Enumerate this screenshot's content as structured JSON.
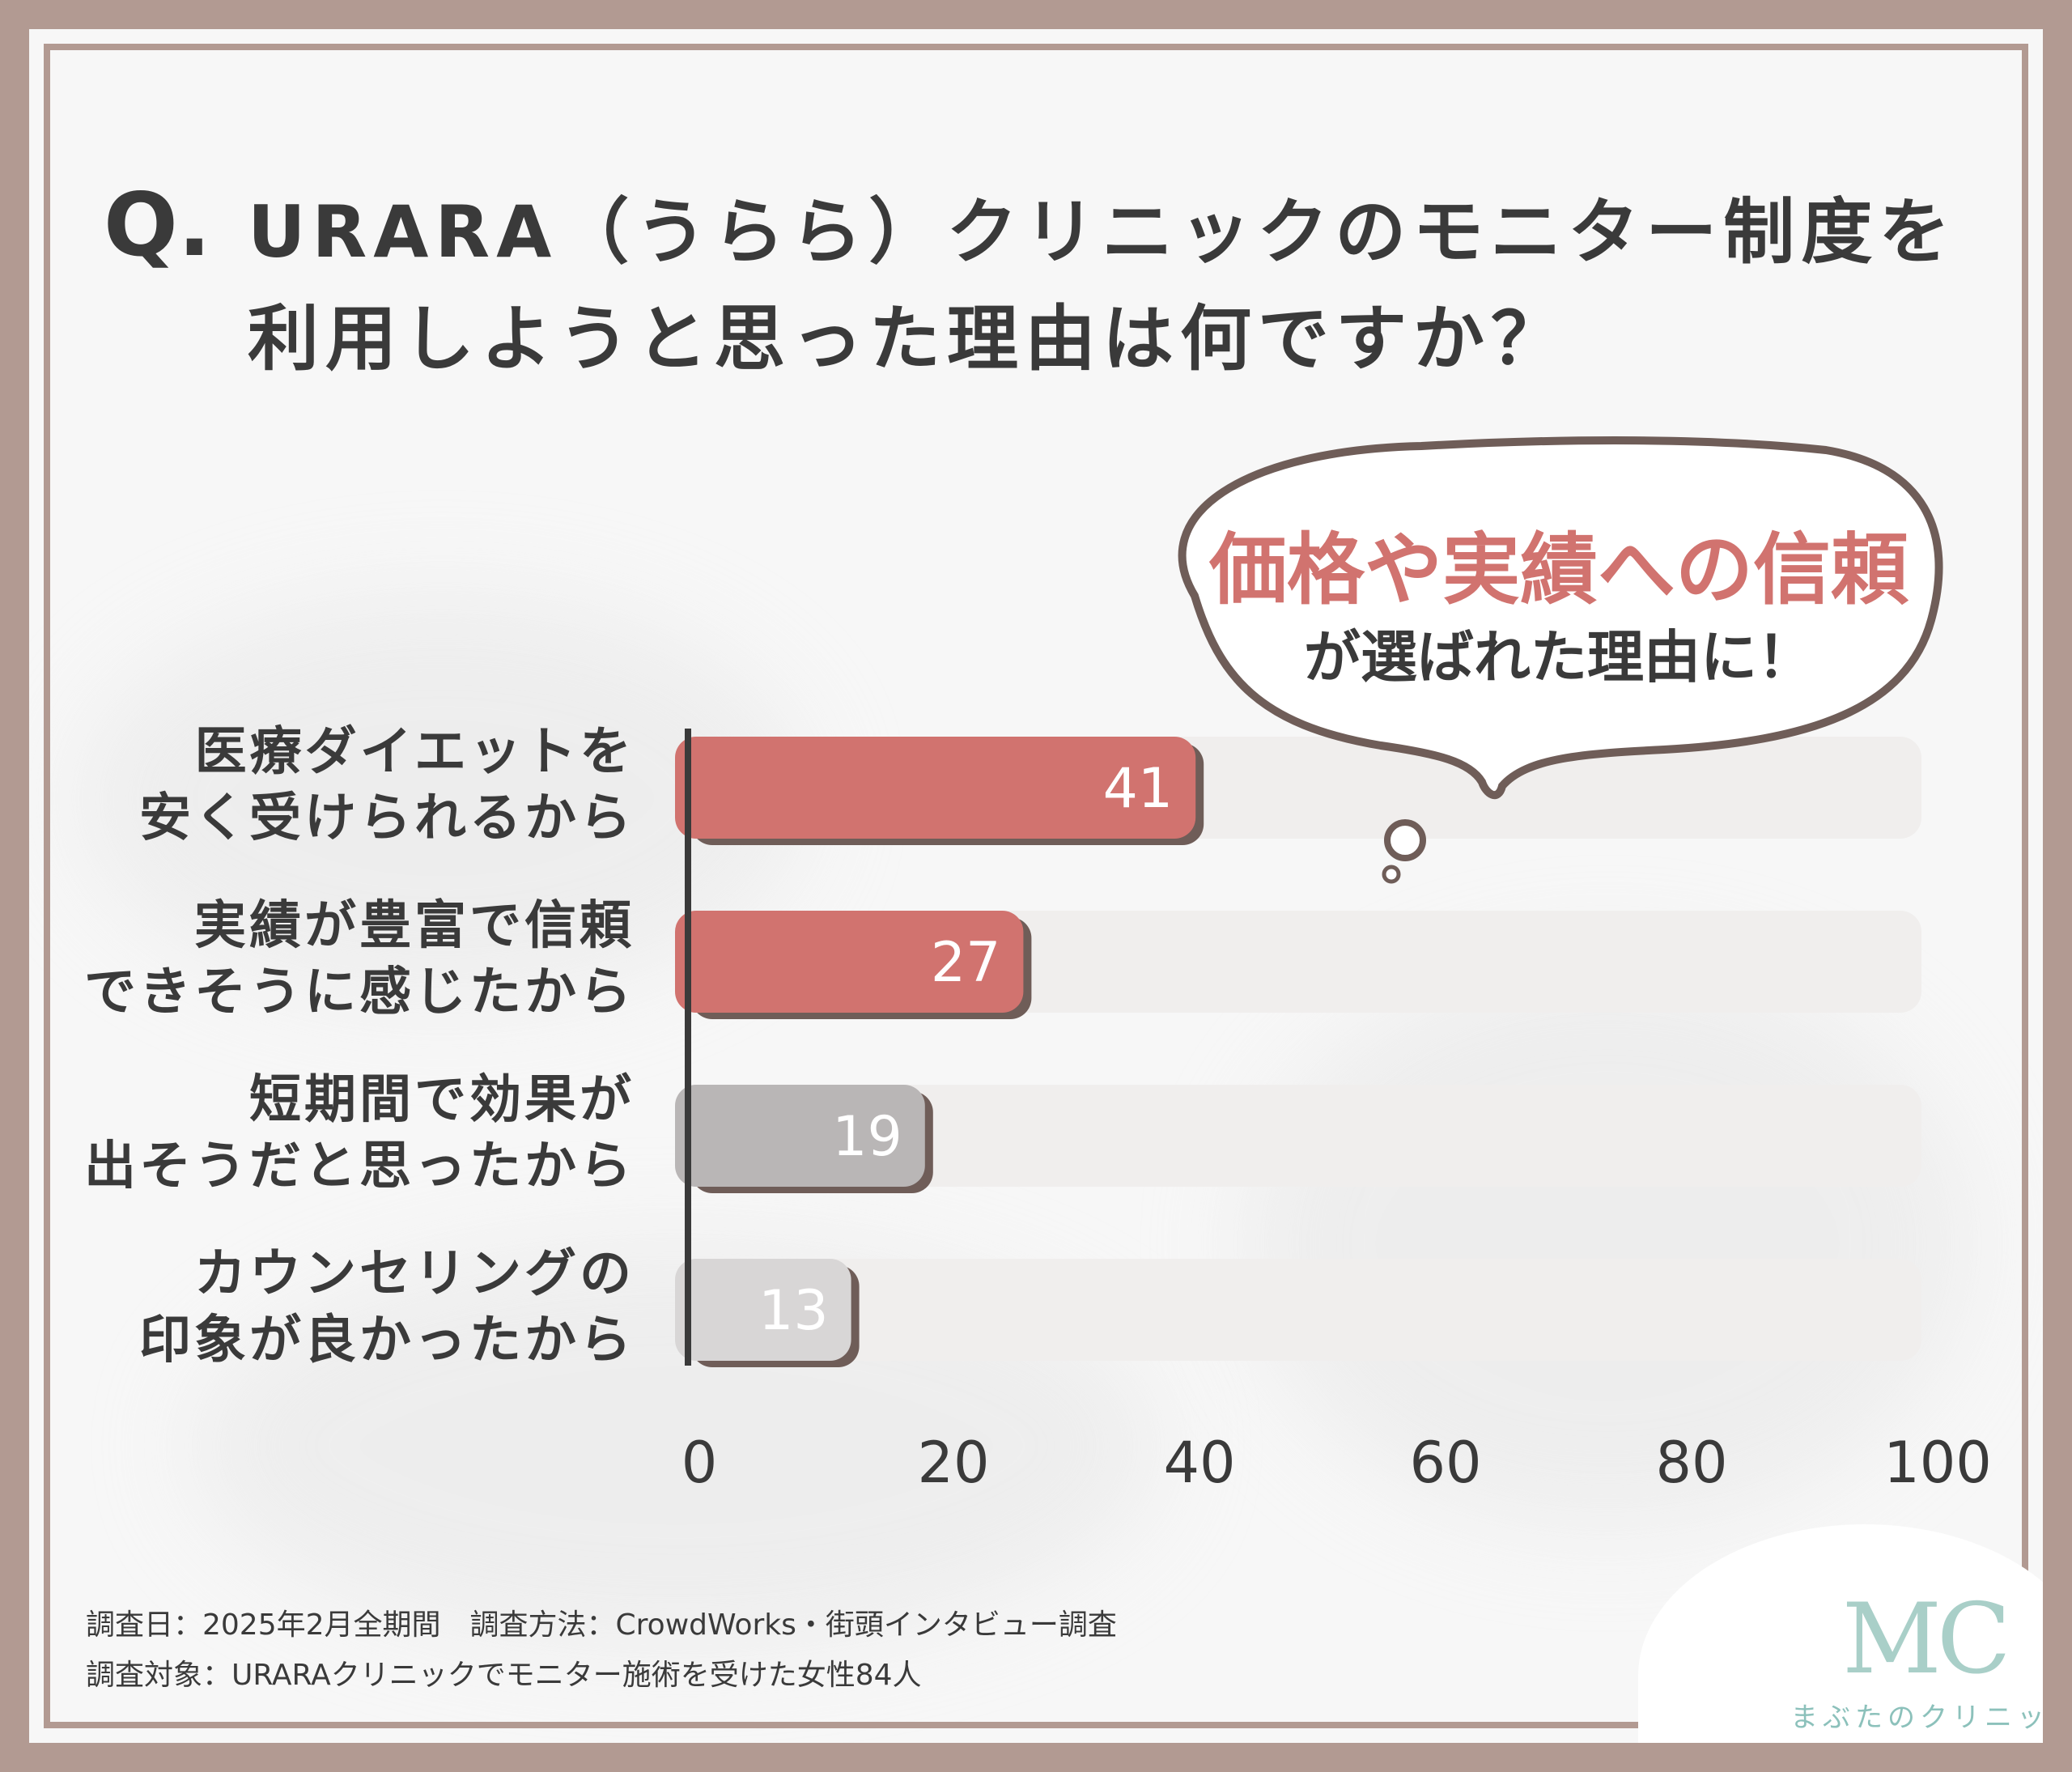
{
  "title": {
    "q_mark": "Q.",
    "line1": "URARA（うらら）クリニックのモニター制度を",
    "line2": "利用しようと思った理由は何ですか？"
  },
  "callout": {
    "main": "価格や実績への信頼",
    "sub": "が選ばれた理由に！"
  },
  "chart_data": {
    "type": "bar",
    "orientation": "horizontal",
    "title": "URARA（うらら）クリニックのモニター制度を利用しようと思った理由は何ですか？",
    "categories": [
      [
        "医療ダイエットを",
        "安く受けられるから"
      ],
      [
        "実績が豊富で信頼",
        "できそうに感じたから"
      ],
      [
        "短期間で効果が",
        "出そうだと思ったから"
      ],
      [
        "カウンセリングの",
        "印象が良かったから"
      ]
    ],
    "values": [
      41,
      27,
      19,
      13
    ],
    "xlim": [
      0,
      100
    ],
    "xticks": [
      0,
      20,
      40,
      60,
      80,
      100
    ],
    "bar_colors": [
      "#d1736f",
      "#d1736f",
      "#b9b6b6",
      "#d8d6d6"
    ],
    "track_color": "#f0eeed",
    "grid": false
  },
  "footer": {
    "line1": "調査日：2025年2月全期間　調査方法：CrowdWorks・街頭インタビュー調査",
    "line2": "調査対象：URARAクリニックでモニター施術を受けた女性84人"
  },
  "logo": {
    "mark": "MC",
    "text": "まぶたのクリニック",
    "color": "#a9cfc8"
  }
}
